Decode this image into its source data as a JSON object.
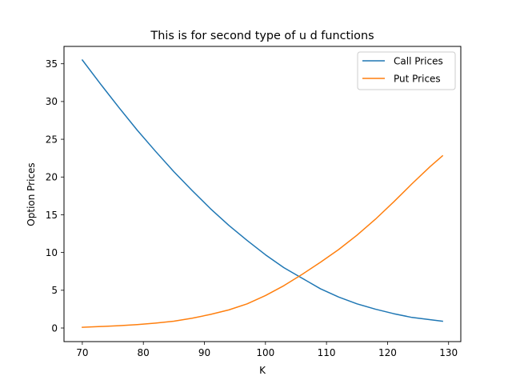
{
  "chart_data": {
    "type": "line",
    "title": "This is for second type of u d functions",
    "xlabel": "K",
    "ylabel": "Option Prices",
    "xlim": [
      67,
      132
    ],
    "ylim": [
      -1.8,
      37.3
    ],
    "xticks": [
      70,
      80,
      90,
      100,
      110,
      120,
      130
    ],
    "yticks": [
      0,
      5,
      10,
      15,
      20,
      25,
      30,
      35
    ],
    "grid": false,
    "legend_position": "top-right",
    "x": [
      70,
      73,
      76,
      79,
      82,
      85,
      88,
      91,
      94,
      97,
      100,
      103,
      106,
      109,
      112,
      115,
      118,
      121,
      124,
      127,
      129
    ],
    "series": [
      {
        "name": "Call Prices",
        "color": "#1f77b4",
        "values": [
          35.5,
          32.3,
          29.2,
          26.2,
          23.4,
          20.7,
          18.2,
          15.8,
          13.6,
          11.6,
          9.7,
          8.0,
          6.6,
          5.2,
          4.1,
          3.2,
          2.5,
          1.9,
          1.4,
          1.1,
          0.9
        ]
      },
      {
        "name": "Put Prices",
        "color": "#ff7f0e",
        "values": [
          0.1,
          0.2,
          0.3,
          0.45,
          0.65,
          0.9,
          1.3,
          1.8,
          2.4,
          3.2,
          4.3,
          5.6,
          7.1,
          8.7,
          10.4,
          12.3,
          14.4,
          16.7,
          19.1,
          21.4,
          22.8
        ]
      }
    ]
  }
}
